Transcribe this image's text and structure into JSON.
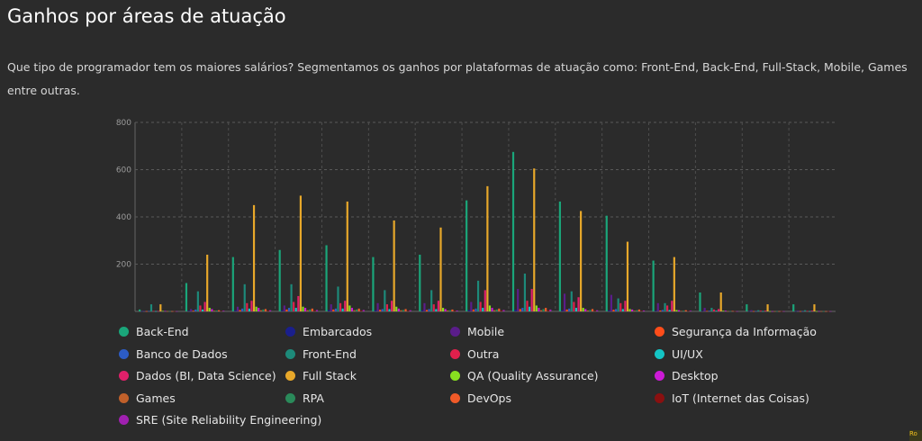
{
  "page": {
    "title": "Ganhos por áreas de atuação",
    "subtitle": "Que tipo de programador tem os maiores salários? Segmentamos os ganhos por plataformas de atuação como: Front-End, Back-End, Full-Stack, Mobile, Games entre outras."
  },
  "chart_data": {
    "type": "bar",
    "title": "",
    "xlabel": "",
    "ylabel": "",
    "ylim": [
      0,
      800
    ],
    "yticks": [
      "200",
      "400",
      "600",
      "800"
    ],
    "grid": true,
    "legend_position": "bottom",
    "group_count": 15,
    "categories": [
      "",
      "",
      "",
      "",
      "",
      "",
      "",
      "",
      "",
      "",
      "",
      "",
      "",
      "",
      ""
    ],
    "series": [
      {
        "name": "Back-End",
        "color": "#1aa67a",
        "values": [
          8,
          120,
          230,
          260,
          280,
          230,
          240,
          470,
          675,
          465,
          405,
          215,
          80,
          30,
          30
        ]
      },
      {
        "name": "Embarcados",
        "color": "#1a1f8c",
        "values": [
          1,
          3,
          5,
          5,
          6,
          5,
          5,
          6,
          8,
          5,
          5,
          3,
          2,
          1,
          1
        ]
      },
      {
        "name": "Mobile",
        "color": "#5a1d8a",
        "values": [
          2,
          10,
          20,
          25,
          30,
          35,
          35,
          40,
          95,
          75,
          70,
          35,
          15,
          5,
          3
        ]
      },
      {
        "name": "Segurança da Informação",
        "color": "#ff4d1a",
        "values": [
          1,
          3,
          6,
          8,
          8,
          7,
          6,
          8,
          10,
          8,
          7,
          4,
          2,
          1,
          1
        ]
      },
      {
        "name": "Banco de Dados",
        "color": "#2c5cc5",
        "values": [
          2,
          8,
          12,
          15,
          12,
          10,
          10,
          12,
          15,
          12,
          10,
          6,
          3,
          1,
          1
        ]
      },
      {
        "name": "Front-End",
        "color": "#1d8a7a",
        "values": [
          30,
          85,
          115,
          115,
          105,
          90,
          90,
          130,
          160,
          85,
          55,
          35,
          15,
          5,
          5
        ]
      },
      {
        "name": "Outra",
        "color": "#e0204c",
        "values": [
          2,
          25,
          35,
          40,
          35,
          30,
          30,
          40,
          45,
          40,
          35,
          25,
          8,
          3,
          2
        ]
      },
      {
        "name": "UI/UX",
        "color": "#14c4c4",
        "values": [
          1,
          8,
          12,
          15,
          12,
          10,
          10,
          15,
          20,
          15,
          10,
          6,
          3,
          1,
          1
        ]
      },
      {
        "name": "Dados (BI, Data Science)",
        "color": "#e0206a",
        "values": [
          2,
          40,
          45,
          65,
          45,
          45,
          45,
          90,
          95,
          60,
          45,
          45,
          10,
          3,
          3
        ]
      },
      {
        "name": "Full Stack",
        "color": "#e8a82a",
        "values": [
          30,
          240,
          450,
          490,
          465,
          385,
          355,
          530,
          605,
          425,
          295,
          230,
          80,
          30,
          30
        ]
      },
      {
        "name": "QA (Quality Assurance)",
        "color": "#88e020",
        "values": [
          2,
          15,
          20,
          20,
          25,
          20,
          15,
          25,
          25,
          15,
          10,
          6,
          3,
          1,
          1
        ]
      },
      {
        "name": "Desktop",
        "color": "#cc1ad6",
        "values": [
          2,
          10,
          15,
          15,
          15,
          12,
          10,
          15,
          15,
          10,
          8,
          5,
          3,
          1,
          1
        ]
      },
      {
        "name": "Games",
        "color": "#c0602a",
        "values": [
          1,
          3,
          5,
          5,
          5,
          5,
          4,
          5,
          5,
          4,
          3,
          2,
          1,
          1,
          1
        ]
      },
      {
        "name": "RPA",
        "color": "#2a8a5a",
        "values": [
          1,
          4,
          8,
          8,
          8,
          6,
          5,
          8,
          10,
          6,
          5,
          3,
          1,
          1,
          1
        ]
      },
      {
        "name": "DevOps",
        "color": "#f05a28",
        "values": [
          1,
          5,
          10,
          12,
          12,
          10,
          8,
          12,
          15,
          10,
          8,
          5,
          2,
          1,
          1
        ]
      },
      {
        "name": "IoT (Internet das Coisas)",
        "color": "#8a1010",
        "values": [
          1,
          2,
          4,
          4,
          4,
          3,
          3,
          4,
          5,
          3,
          3,
          2,
          1,
          1,
          1
        ]
      },
      {
        "name": "SRE (Site Reliability Engineering)",
        "color": "#a020b0",
        "values": [
          1,
          3,
          5,
          6,
          6,
          5,
          4,
          6,
          8,
          5,
          4,
          3,
          1,
          1,
          1
        ]
      }
    ]
  }
}
